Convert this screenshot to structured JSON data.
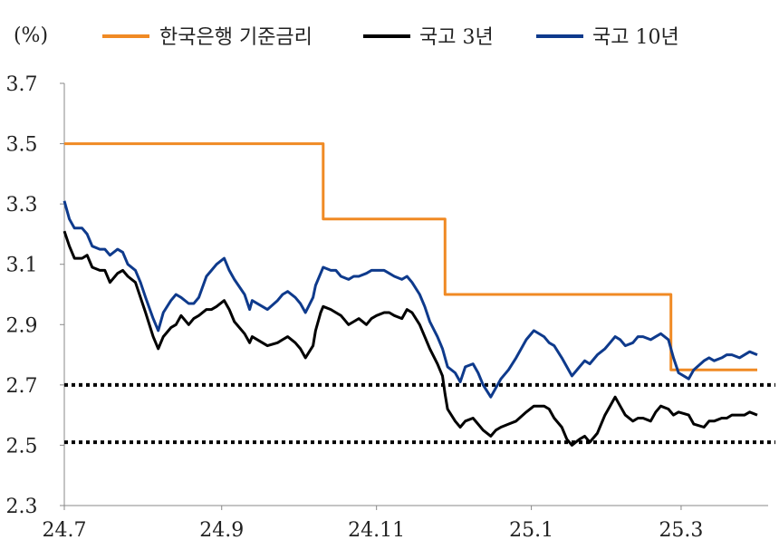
{
  "chart_data": {
    "type": "line",
    "unit_label": "(%)",
    "x_ticks": [
      "24.7",
      "24.9",
      "24.11",
      "25.1",
      "25.3"
    ],
    "y_ticks": [
      "2.3",
      "2.5",
      "2.7",
      "2.9",
      "3.1",
      "3.3",
      "3.5",
      "3.7"
    ],
    "ylim": [
      2.3,
      3.7
    ],
    "xlim": [
      "2024-07-01",
      "2025-03-31"
    ],
    "grid": false,
    "legend_position": "top",
    "reference_lines": [
      {
        "y": 2.7,
        "style": "dotted",
        "color": "#000000"
      },
      {
        "y": 2.51,
        "style": "dotted",
        "color": "#000000"
      }
    ],
    "series": [
      {
        "name": "한국은행 기준금리",
        "color": "#F08A24",
        "step": true,
        "points": [
          [
            "2024-07-01",
            3.5
          ],
          [
            "2024-10-11",
            3.25
          ],
          [
            "2024-11-28",
            3.0
          ],
          [
            "2025-02-25",
            2.75
          ],
          [
            "2025-03-31",
            2.75
          ]
        ]
      },
      {
        "name": "국고 3년",
        "color": "#000000",
        "points": [
          [
            "2024-07-01",
            3.21
          ],
          [
            "2024-07-03",
            3.16
          ],
          [
            "2024-07-05",
            3.12
          ],
          [
            "2024-07-08",
            3.12
          ],
          [
            "2024-07-10",
            3.13
          ],
          [
            "2024-07-12",
            3.09
          ],
          [
            "2024-07-15",
            3.08
          ],
          [
            "2024-07-17",
            3.08
          ],
          [
            "2024-07-19",
            3.04
          ],
          [
            "2024-07-22",
            3.07
          ],
          [
            "2024-07-24",
            3.08
          ],
          [
            "2024-07-26",
            3.06
          ],
          [
            "2024-07-29",
            3.04
          ],
          [
            "2024-07-31",
            2.99
          ],
          [
            "2024-08-02",
            2.94
          ],
          [
            "2024-08-05",
            2.86
          ],
          [
            "2024-08-07",
            2.82
          ],
          [
            "2024-08-09",
            2.86
          ],
          [
            "2024-08-12",
            2.89
          ],
          [
            "2024-08-14",
            2.9
          ],
          [
            "2024-08-16",
            2.93
          ],
          [
            "2024-08-19",
            2.9
          ],
          [
            "2024-08-21",
            2.92
          ],
          [
            "2024-08-23",
            2.93
          ],
          [
            "2024-08-26",
            2.95
          ],
          [
            "2024-08-28",
            2.95
          ],
          [
            "2024-08-30",
            2.96
          ],
          [
            "2024-09-02",
            2.98
          ],
          [
            "2024-09-04",
            2.95
          ],
          [
            "2024-09-06",
            2.91
          ],
          [
            "2024-09-10",
            2.87
          ],
          [
            "2024-09-12",
            2.84
          ],
          [
            "2024-09-13",
            2.86
          ],
          [
            "2024-09-19",
            2.83
          ],
          [
            "2024-09-23",
            2.84
          ],
          [
            "2024-09-25",
            2.85
          ],
          [
            "2024-09-27",
            2.86
          ],
          [
            "2024-09-30",
            2.84
          ],
          [
            "2024-10-02",
            2.82
          ],
          [
            "2024-10-04",
            2.79
          ],
          [
            "2024-10-07",
            2.83
          ],
          [
            "2024-10-08",
            2.88
          ],
          [
            "2024-10-10",
            2.94
          ],
          [
            "2024-10-11",
            2.96
          ],
          [
            "2024-10-14",
            2.95
          ],
          [
            "2024-10-16",
            2.94
          ],
          [
            "2024-10-18",
            2.93
          ],
          [
            "2024-10-21",
            2.9
          ],
          [
            "2024-10-23",
            2.91
          ],
          [
            "2024-10-25",
            2.92
          ],
          [
            "2024-10-28",
            2.9
          ],
          [
            "2024-10-30",
            2.92
          ],
          [
            "2024-11-01",
            2.93
          ],
          [
            "2024-11-04",
            2.94
          ],
          [
            "2024-11-06",
            2.94
          ],
          [
            "2024-11-08",
            2.93
          ],
          [
            "2024-11-11",
            2.92
          ],
          [
            "2024-11-13",
            2.95
          ],
          [
            "2024-11-15",
            2.94
          ],
          [
            "2024-11-18",
            2.9
          ],
          [
            "2024-11-20",
            2.86
          ],
          [
            "2024-11-22",
            2.82
          ],
          [
            "2024-11-25",
            2.77
          ],
          [
            "2024-11-27",
            2.73
          ],
          [
            "2024-11-28",
            2.67
          ],
          [
            "2024-11-29",
            2.62
          ],
          [
            "2024-12-02",
            2.58
          ],
          [
            "2024-12-04",
            2.56
          ],
          [
            "2024-12-06",
            2.58
          ],
          [
            "2024-12-09",
            2.59
          ],
          [
            "2024-12-11",
            2.57
          ],
          [
            "2024-12-13",
            2.55
          ],
          [
            "2024-12-16",
            2.53
          ],
          [
            "2024-12-18",
            2.55
          ],
          [
            "2024-12-20",
            2.56
          ],
          [
            "2024-12-23",
            2.57
          ],
          [
            "2024-12-26",
            2.58
          ],
          [
            "2024-12-30",
            2.61
          ],
          [
            "2025-01-02",
            2.63
          ],
          [
            "2025-01-06",
            2.63
          ],
          [
            "2025-01-08",
            2.62
          ],
          [
            "2025-01-10",
            2.59
          ],
          [
            "2025-01-13",
            2.56
          ],
          [
            "2025-01-15",
            2.52
          ],
          [
            "2025-01-17",
            2.5
          ],
          [
            "2025-01-20",
            2.52
          ],
          [
            "2025-01-22",
            2.53
          ],
          [
            "2025-01-24",
            2.51
          ],
          [
            "2025-01-27",
            2.54
          ],
          [
            "2025-01-30",
            2.6
          ],
          [
            "2025-02-01",
            2.63
          ],
          [
            "2025-02-03",
            2.66
          ],
          [
            "2025-02-05",
            2.63
          ],
          [
            "2025-02-07",
            2.6
          ],
          [
            "2025-02-10",
            2.58
          ],
          [
            "2025-02-12",
            2.59
          ],
          [
            "2025-02-14",
            2.59
          ],
          [
            "2025-02-17",
            2.58
          ],
          [
            "2025-02-19",
            2.61
          ],
          [
            "2025-02-21",
            2.63
          ],
          [
            "2025-02-24",
            2.62
          ],
          [
            "2025-02-26",
            2.6
          ],
          [
            "2025-02-28",
            2.61
          ],
          [
            "2025-03-04",
            2.6
          ],
          [
            "2025-03-06",
            2.57
          ],
          [
            "2025-03-10",
            2.56
          ],
          [
            "2025-03-12",
            2.58
          ],
          [
            "2025-03-14",
            2.58
          ],
          [
            "2025-03-17",
            2.59
          ],
          [
            "2025-03-19",
            2.59
          ],
          [
            "2025-03-21",
            2.6
          ],
          [
            "2025-03-24",
            2.6
          ],
          [
            "2025-03-26",
            2.6
          ],
          [
            "2025-03-28",
            2.61
          ],
          [
            "2025-03-31",
            2.6
          ]
        ]
      },
      {
        "name": "국고 10년",
        "color": "#0E3A8C",
        "points": [
          [
            "2024-07-01",
            3.31
          ],
          [
            "2024-07-03",
            3.25
          ],
          [
            "2024-07-05",
            3.22
          ],
          [
            "2024-07-08",
            3.22
          ],
          [
            "2024-07-10",
            3.2
          ],
          [
            "2024-07-12",
            3.16
          ],
          [
            "2024-07-15",
            3.15
          ],
          [
            "2024-07-17",
            3.15
          ],
          [
            "2024-07-19",
            3.13
          ],
          [
            "2024-07-22",
            3.15
          ],
          [
            "2024-07-24",
            3.14
          ],
          [
            "2024-07-26",
            3.1
          ],
          [
            "2024-07-29",
            3.08
          ],
          [
            "2024-07-31",
            3.04
          ],
          [
            "2024-08-02",
            2.99
          ],
          [
            "2024-08-05",
            2.92
          ],
          [
            "2024-08-07",
            2.88
          ],
          [
            "2024-08-09",
            2.94
          ],
          [
            "2024-08-12",
            2.98
          ],
          [
            "2024-08-14",
            3.0
          ],
          [
            "2024-08-16",
            2.99
          ],
          [
            "2024-08-19",
            2.97
          ],
          [
            "2024-08-21",
            2.97
          ],
          [
            "2024-08-23",
            2.99
          ],
          [
            "2024-08-26",
            3.06
          ],
          [
            "2024-08-28",
            3.08
          ],
          [
            "2024-08-30",
            3.1
          ],
          [
            "2024-09-02",
            3.12
          ],
          [
            "2024-09-04",
            3.08
          ],
          [
            "2024-09-06",
            3.05
          ],
          [
            "2024-09-10",
            3.0
          ],
          [
            "2024-09-12",
            2.95
          ],
          [
            "2024-09-13",
            2.98
          ],
          [
            "2024-09-19",
            2.95
          ],
          [
            "2024-09-23",
            2.98
          ],
          [
            "2024-09-25",
            3.0
          ],
          [
            "2024-09-27",
            3.01
          ],
          [
            "2024-09-30",
            2.99
          ],
          [
            "2024-10-02",
            2.97
          ],
          [
            "2024-10-04",
            2.94
          ],
          [
            "2024-10-07",
            2.99
          ],
          [
            "2024-10-08",
            3.03
          ],
          [
            "2024-10-10",
            3.07
          ],
          [
            "2024-10-11",
            3.09
          ],
          [
            "2024-10-14",
            3.08
          ],
          [
            "2024-10-16",
            3.08
          ],
          [
            "2024-10-18",
            3.06
          ],
          [
            "2024-10-21",
            3.05
          ],
          [
            "2024-10-23",
            3.06
          ],
          [
            "2024-10-25",
            3.06
          ],
          [
            "2024-10-28",
            3.07
          ],
          [
            "2024-10-30",
            3.08
          ],
          [
            "2024-11-01",
            3.08
          ],
          [
            "2024-11-04",
            3.08
          ],
          [
            "2024-11-06",
            3.07
          ],
          [
            "2024-11-08",
            3.06
          ],
          [
            "2024-11-11",
            3.05
          ],
          [
            "2024-11-13",
            3.06
          ],
          [
            "2024-11-15",
            3.04
          ],
          [
            "2024-11-18",
            3.0
          ],
          [
            "2024-11-20",
            2.96
          ],
          [
            "2024-11-22",
            2.91
          ],
          [
            "2024-11-25",
            2.86
          ],
          [
            "2024-11-27",
            2.82
          ],
          [
            "2024-11-28",
            2.79
          ],
          [
            "2024-11-29",
            2.76
          ],
          [
            "2024-12-02",
            2.74
          ],
          [
            "2024-12-04",
            2.71
          ],
          [
            "2024-12-06",
            2.76
          ],
          [
            "2024-12-09",
            2.77
          ],
          [
            "2024-12-11",
            2.74
          ],
          [
            "2024-12-13",
            2.7
          ],
          [
            "2024-12-16",
            2.66
          ],
          [
            "2024-12-18",
            2.69
          ],
          [
            "2024-12-20",
            2.72
          ],
          [
            "2024-12-23",
            2.75
          ],
          [
            "2024-12-26",
            2.79
          ],
          [
            "2024-12-30",
            2.85
          ],
          [
            "2025-01-02",
            2.88
          ],
          [
            "2025-01-06",
            2.86
          ],
          [
            "2025-01-08",
            2.84
          ],
          [
            "2025-01-10",
            2.83
          ],
          [
            "2025-01-13",
            2.79
          ],
          [
            "2025-01-15",
            2.76
          ],
          [
            "2025-01-17",
            2.73
          ],
          [
            "2025-01-20",
            2.76
          ],
          [
            "2025-01-22",
            2.78
          ],
          [
            "2025-01-24",
            2.77
          ],
          [
            "2025-01-27",
            2.8
          ],
          [
            "2025-01-30",
            2.82
          ],
          [
            "2025-02-01",
            2.84
          ],
          [
            "2025-02-03",
            2.86
          ],
          [
            "2025-02-05",
            2.85
          ],
          [
            "2025-02-07",
            2.83
          ],
          [
            "2025-02-10",
            2.84
          ],
          [
            "2025-02-12",
            2.86
          ],
          [
            "2025-02-14",
            2.86
          ],
          [
            "2025-02-17",
            2.85
          ],
          [
            "2025-02-19",
            2.86
          ],
          [
            "2025-02-21",
            2.87
          ],
          [
            "2025-02-24",
            2.85
          ],
          [
            "2025-02-26",
            2.79
          ],
          [
            "2025-02-28",
            2.74
          ],
          [
            "2025-03-04",
            2.72
          ],
          [
            "2025-03-06",
            2.75
          ],
          [
            "2025-03-10",
            2.78
          ],
          [
            "2025-03-12",
            2.79
          ],
          [
            "2025-03-14",
            2.78
          ],
          [
            "2025-03-17",
            2.79
          ],
          [
            "2025-03-19",
            2.8
          ],
          [
            "2025-03-21",
            2.8
          ],
          [
            "2025-03-24",
            2.79
          ],
          [
            "2025-03-26",
            2.8
          ],
          [
            "2025-03-28",
            2.81
          ],
          [
            "2025-03-31",
            2.8
          ]
        ]
      }
    ]
  }
}
